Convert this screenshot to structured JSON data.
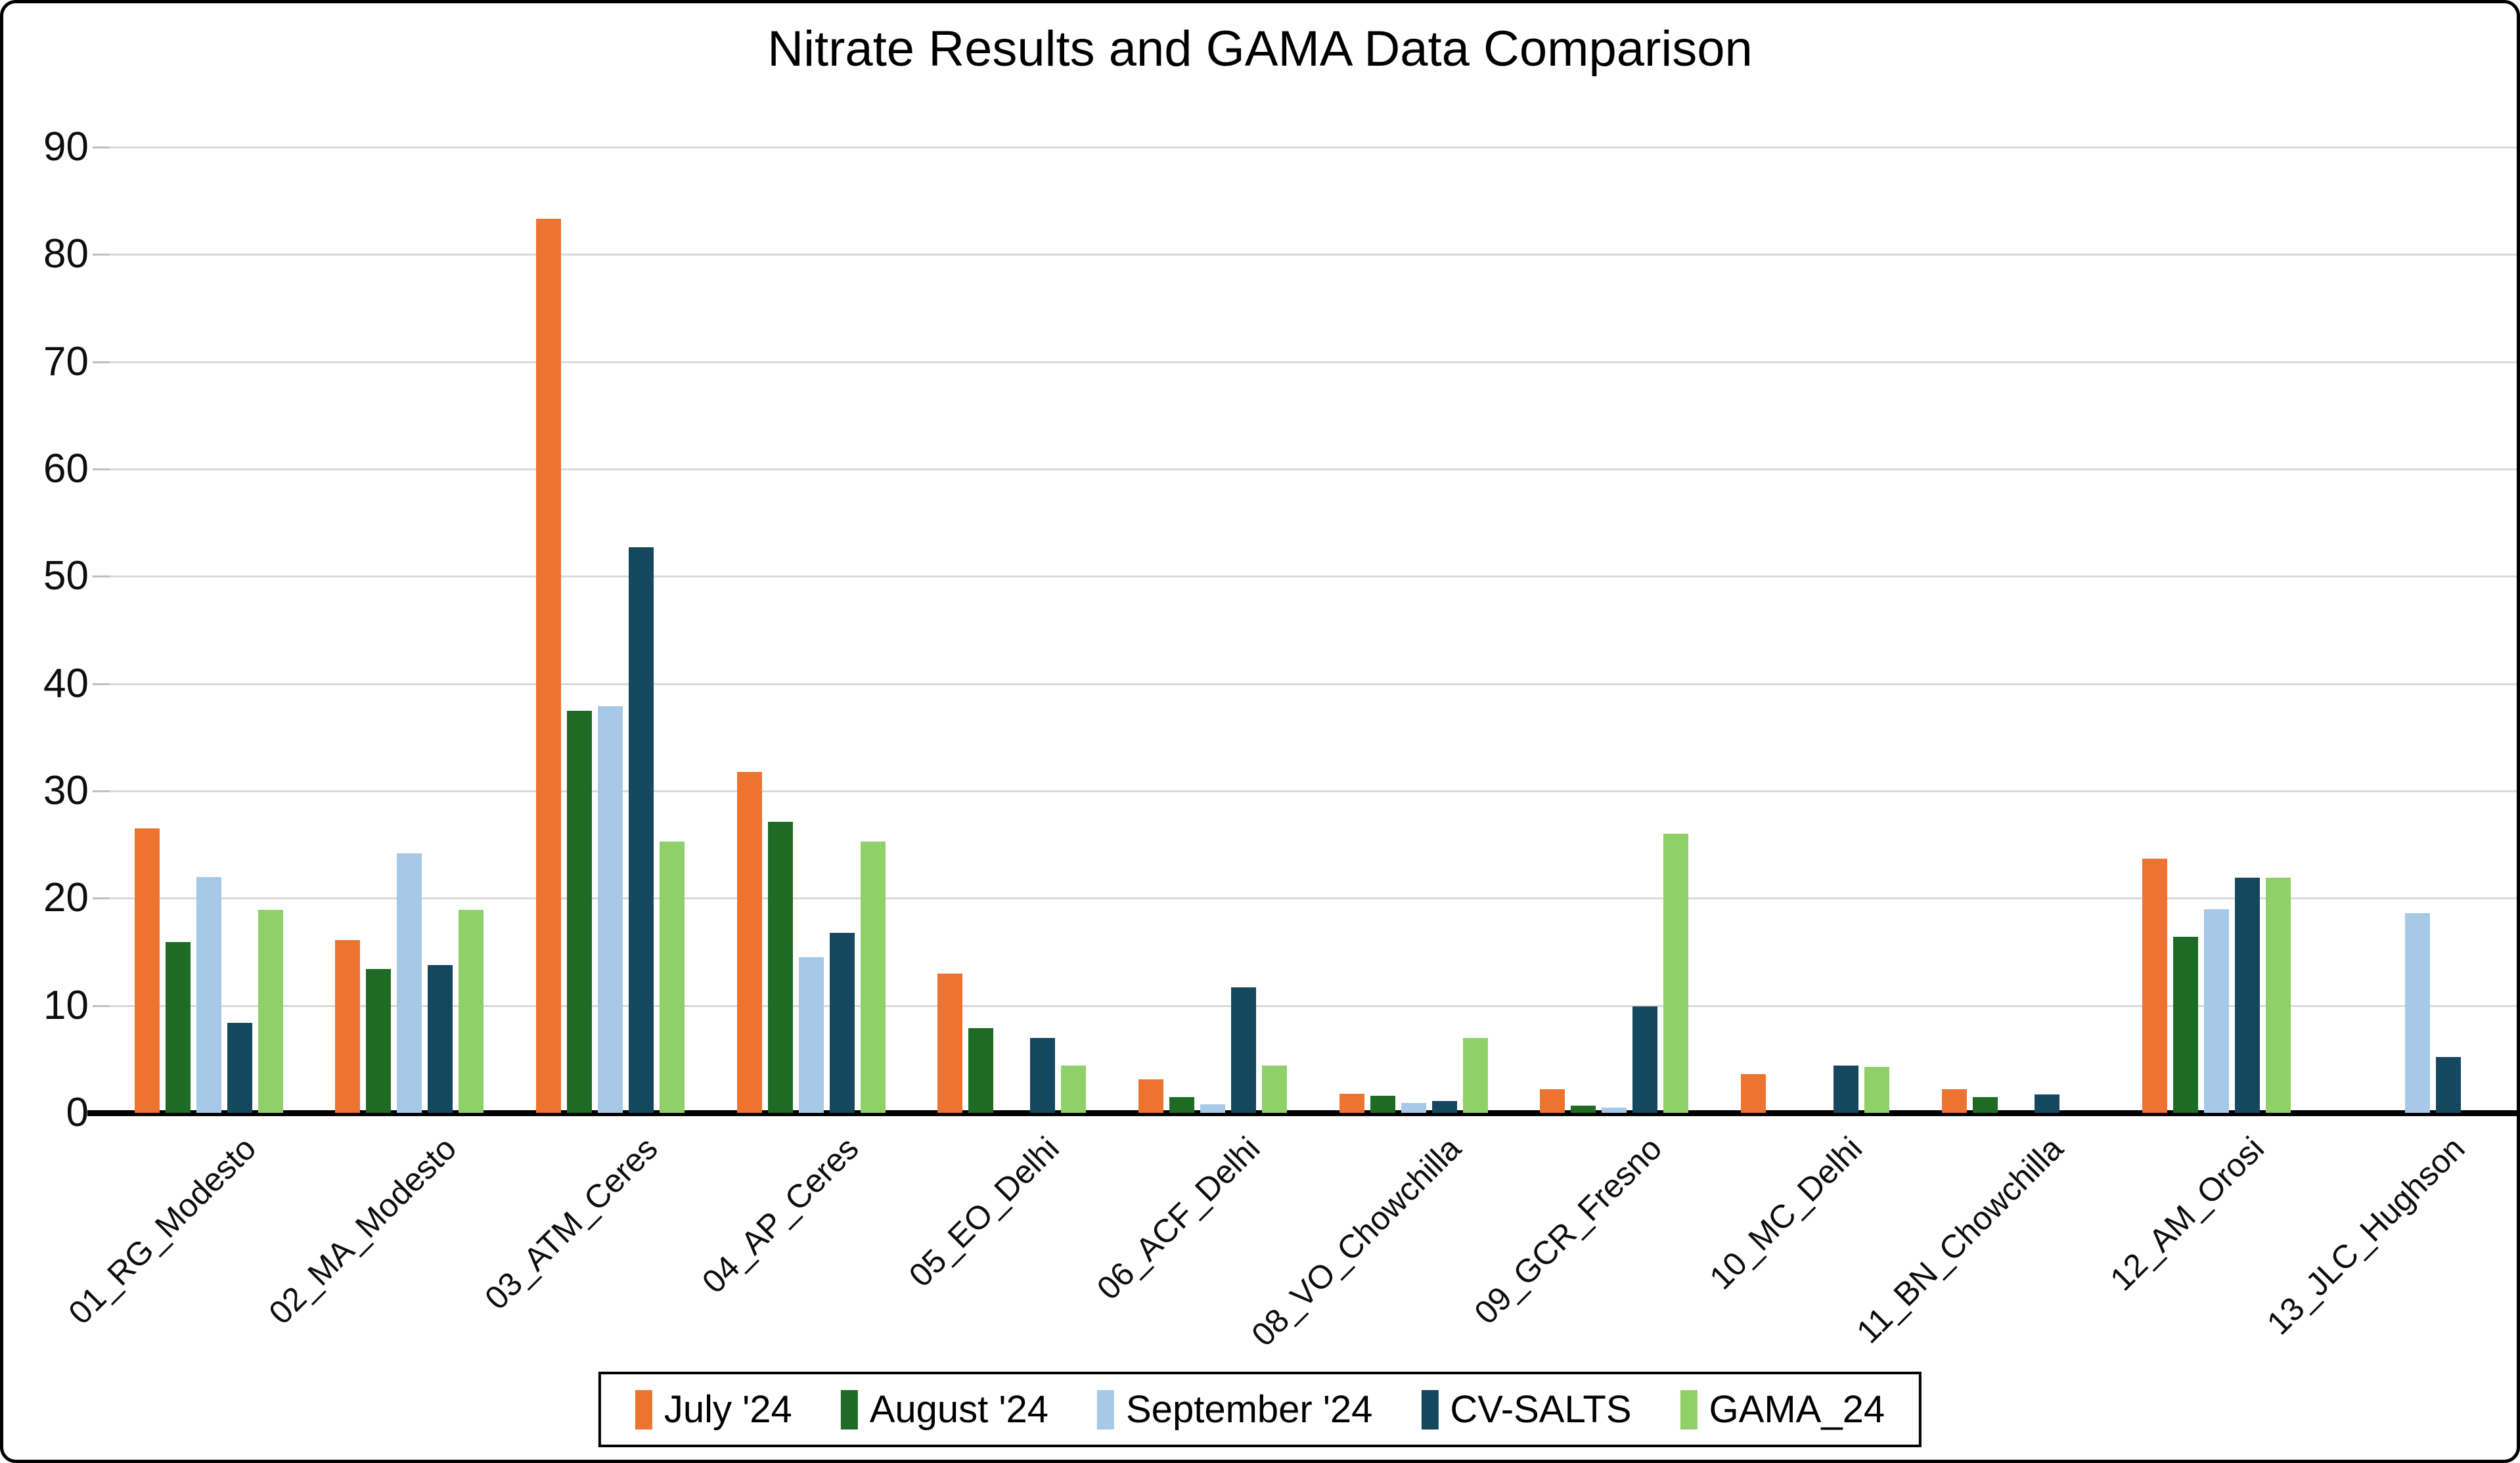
{
  "title": "Nitrate Results and GAMA Data Comparison",
  "colors": {
    "july": "#ED7331",
    "august": "#1E6B25",
    "september": "#A6C9E8",
    "cv_salts": "#15485F",
    "gama": "#8FD168",
    "gridline": "#D9D9D9",
    "axis": "#000000"
  },
  "chart_data": {
    "type": "bar",
    "title": "Nitrate Results and GAMA Data Comparison",
    "categories": [
      "01_RG_Modesto",
      "02_MA_Modesto",
      "03_ATM_Ceres",
      "04_AP_Ceres",
      "05_EO_Delhi",
      "06_ACF_Delhi",
      "08_VO_Chowchilla",
      "09_GCR_Fresno",
      "10_MC_Delhi",
      "11_BN_Chowchilla",
      "12_AM_Orosi",
      "13_JLC_Hughson"
    ],
    "series": [
      {
        "name": "July '24",
        "color": "#ED7331",
        "values": [
          26.5,
          16.1,
          83.3,
          31.8,
          13.0,
          3.1,
          1.8,
          2.2,
          3.6,
          2.2,
          23.7,
          0
        ]
      },
      {
        "name": "August '24",
        "color": "#1E6B25",
        "values": [
          15.9,
          13.4,
          37.5,
          27.1,
          7.9,
          1.5,
          1.6,
          0.7,
          0,
          1.5,
          16.4,
          0
        ]
      },
      {
        "name": "September '24",
        "color": "#A6C9E8",
        "values": [
          22.0,
          24.2,
          37.9,
          14.5,
          0,
          0.8,
          0.9,
          0.5,
          0,
          0,
          19.0,
          18.6
        ]
      },
      {
        "name": "CV-SALTS",
        "color": "#15485F",
        "values": [
          8.4,
          13.8,
          52.7,
          16.8,
          7.0,
          11.7,
          1.1,
          9.9,
          4.4,
          1.7,
          21.9,
          5.2
        ]
      },
      {
        "name": "GAMA_24",
        "color": "#8FD168",
        "values": [
          18.9,
          18.9,
          25.3,
          25.3,
          4.4,
          4.4,
          7.0,
          26.0,
          4.3,
          0,
          21.9,
          0
        ]
      }
    ],
    "xlabel": "",
    "ylabel": "",
    "ylim": [
      0,
      90
    ],
    "yticks": [
      0,
      10,
      20,
      30,
      40,
      50,
      60,
      70,
      80,
      90
    ],
    "grid": true,
    "legend_position": "bottom"
  }
}
